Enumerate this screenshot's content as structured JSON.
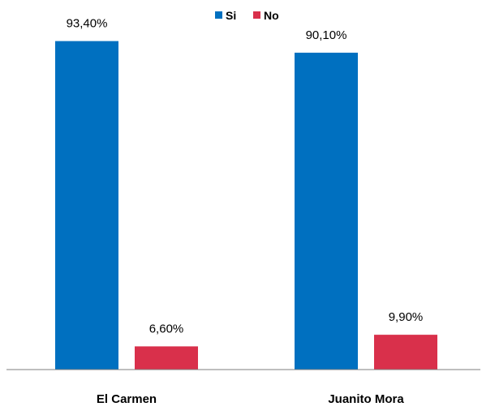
{
  "chart_data": {
    "type": "bar",
    "categories": [
      "El Carmen",
      "Juanito Mora"
    ],
    "series": [
      {
        "name": "Si",
        "values": [
          93.4,
          90.1
        ],
        "labels": [
          "93,40%",
          "90,10%"
        ],
        "color": "#0070C0"
      },
      {
        "name": "No",
        "values": [
          6.6,
          9.9
        ],
        "labels": [
          "6,60%",
          "9,90%"
        ],
        "color": "#D9304B"
      }
    ],
    "title": "",
    "xlabel": "",
    "ylabel": "",
    "ylim": [
      0,
      100
    ],
    "grid": false,
    "legend": "top-center"
  }
}
